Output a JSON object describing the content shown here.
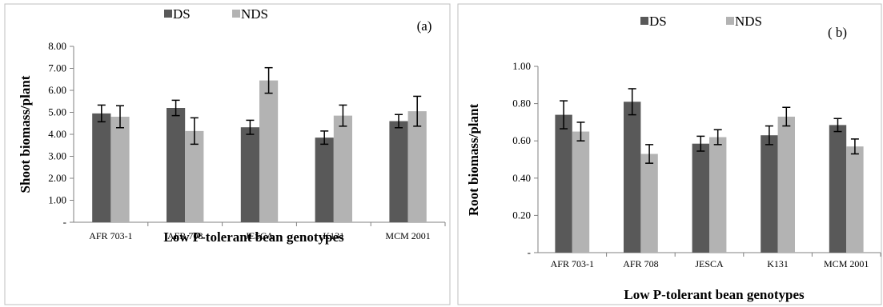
{
  "chart_data": [
    {
      "type": "bar",
      "panel_label": "(a)",
      "categories": [
        "AFR 703-1",
        "AFR 708",
        "JESCA",
        "K131",
        "MCM 2001"
      ],
      "series": [
        {
          "name": "DS",
          "color": "#595959",
          "values": [
            4.95,
            5.2,
            4.32,
            3.85,
            4.6
          ],
          "errors": [
            0.38,
            0.35,
            0.32,
            0.3,
            0.3
          ]
        },
        {
          "name": "NDS",
          "color": "#b3b3b3",
          "values": [
            4.8,
            4.15,
            6.45,
            4.85,
            5.05
          ],
          "errors": [
            0.5,
            0.6,
            0.58,
            0.48,
            0.68
          ]
        }
      ],
      "xlabel": "Low P-tolerant bean genotypes",
      "ylabel": "Shoot biomass/plant",
      "ylim": [
        0,
        8
      ],
      "yticks": [
        0,
        1,
        2,
        3,
        4,
        5,
        6,
        7,
        8
      ],
      "ytick_labels": [
        "-",
        "1.00",
        "2.00",
        "3.00",
        "4.00",
        "5.00",
        "6.00",
        "7.00",
        "8.00"
      ],
      "legend": "top",
      "grid": false
    },
    {
      "type": "bar",
      "panel_label": "( b)",
      "categories": [
        "AFR 703-1",
        "AFR 708",
        "JESCA",
        "K131",
        "MCM 2001"
      ],
      "series": [
        {
          "name": "DS",
          "color": "#595959",
          "values": [
            0.74,
            0.81,
            0.585,
            0.63,
            0.685
          ],
          "errors": [
            0.075,
            0.07,
            0.04,
            0.05,
            0.035
          ]
        },
        {
          "name": "NDS",
          "color": "#b3b3b3",
          "values": [
            0.65,
            0.53,
            0.62,
            0.73,
            0.57
          ],
          "errors": [
            0.05,
            0.05,
            0.04,
            0.05,
            0.04
          ]
        }
      ],
      "xlabel": "Low P-tolerant bean genotypes",
      "ylabel": "Root biomass/plant",
      "ylim": [
        0,
        1
      ],
      "yticks": [
        0,
        0.2,
        0.4,
        0.6,
        0.8,
        1.0
      ],
      "ytick_labels": [
        "-",
        "0.20",
        "0.40",
        "0.60",
        "0.80",
        "1.00"
      ],
      "legend": "top",
      "grid": false
    }
  ]
}
